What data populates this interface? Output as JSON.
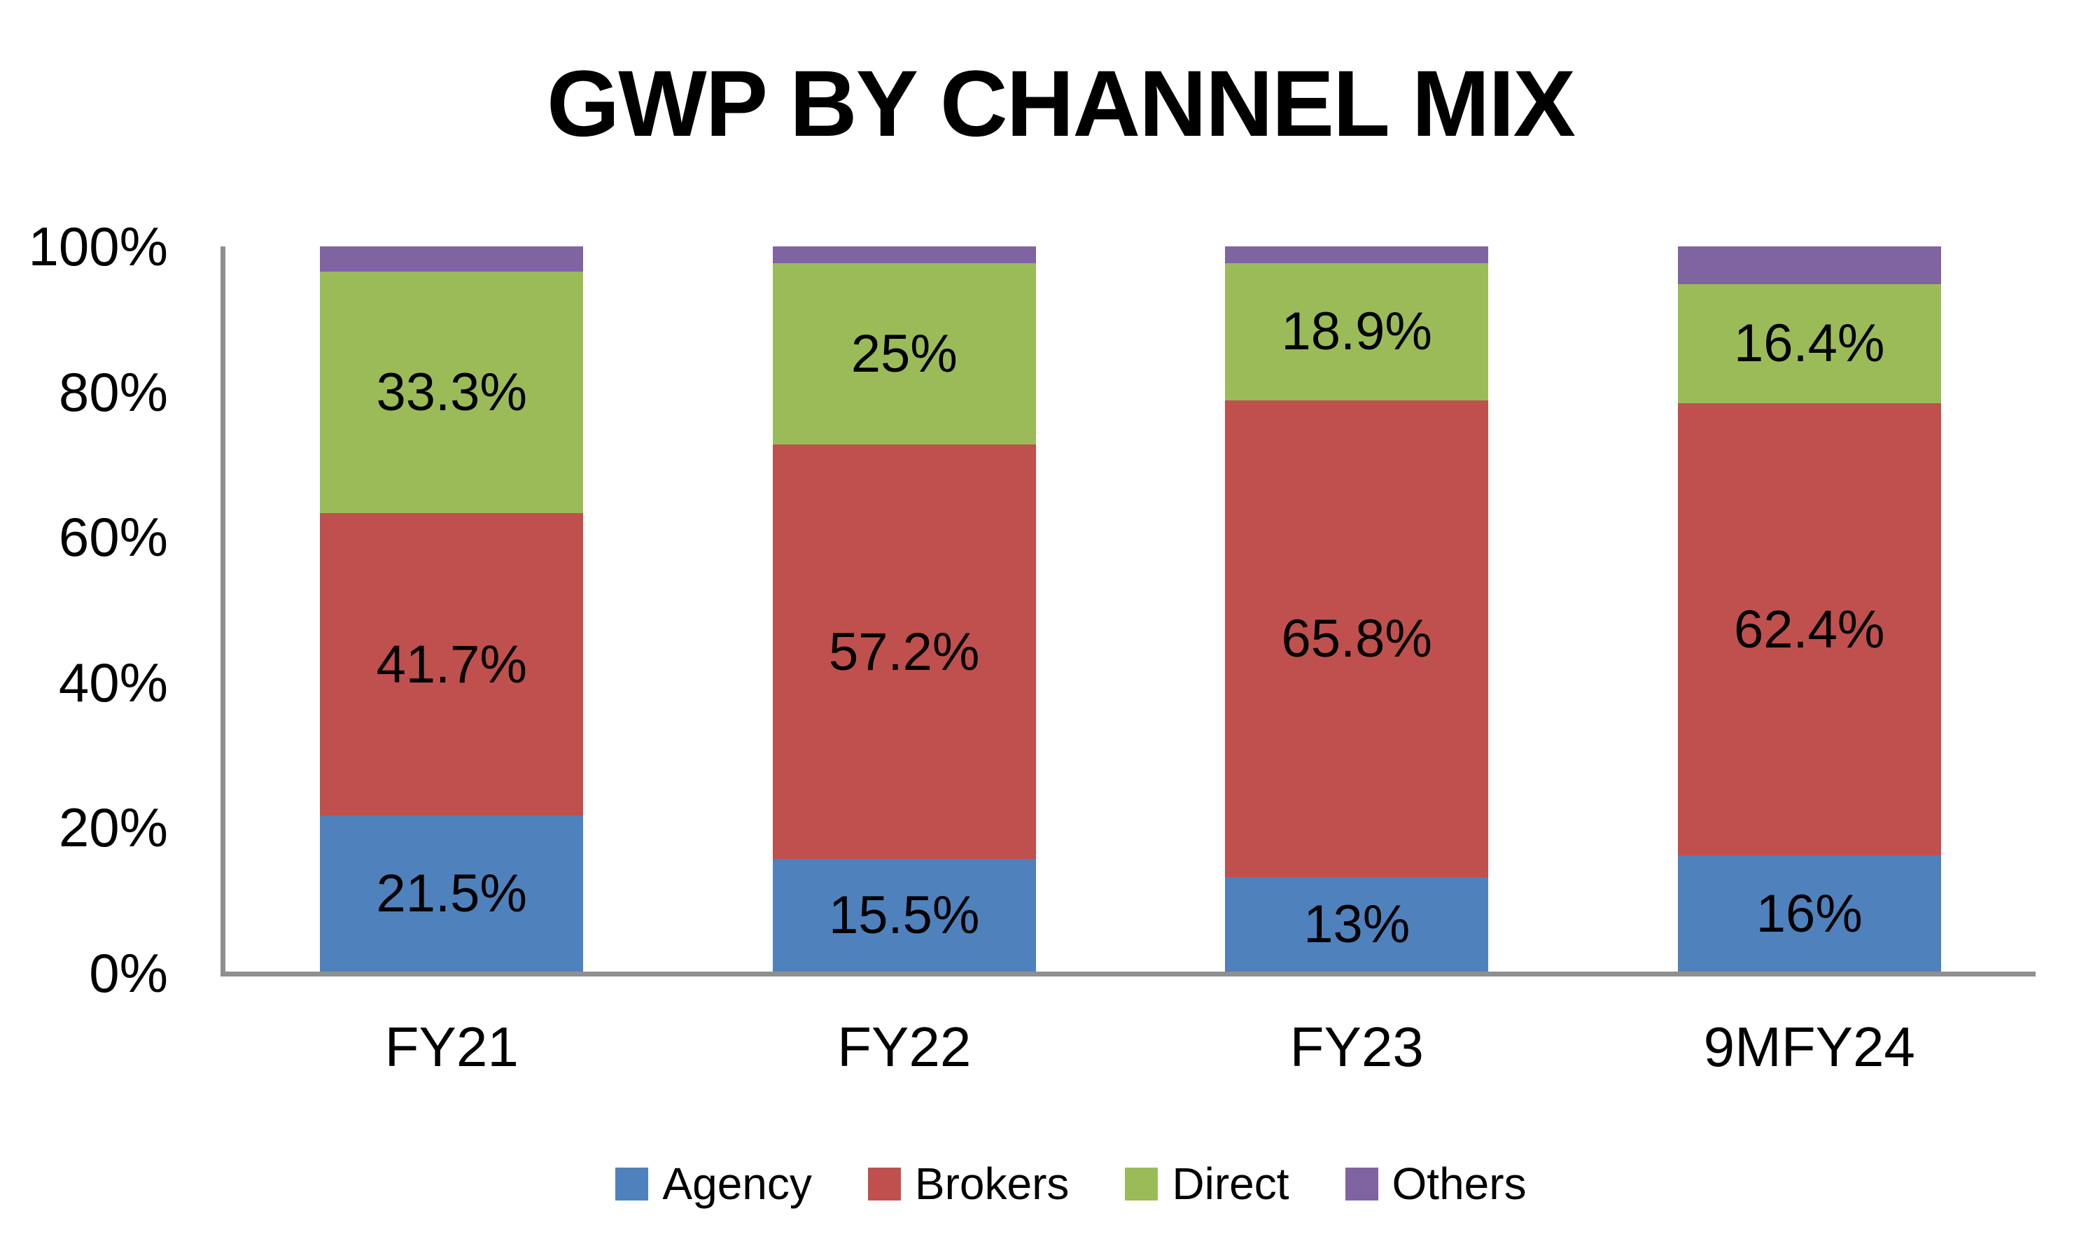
{
  "title": "GWP BY CHANNEL MIX",
  "colors": {
    "axis_line": "#8F8F8F",
    "text": "#000000",
    "background": "#FFFFFF",
    "agency": "#4F81BD",
    "brokers": "#C0504D",
    "direct": "#9BBB59",
    "others": "#8064A2"
  },
  "y_axis": {
    "ticks": [
      {
        "label": "100%",
        "value": 100
      },
      {
        "label": "80%",
        "value": 80
      },
      {
        "label": "60%",
        "value": 60
      },
      {
        "label": "40%",
        "value": 40
      },
      {
        "label": "20%",
        "value": 20
      },
      {
        "label": "0%",
        "value": 0
      }
    ]
  },
  "chart_data": {
    "type": "bar",
    "stacked": true,
    "title": "GWP BY CHANNEL MIX",
    "xlabel": "",
    "ylabel": "",
    "ylim": [
      0,
      100
    ],
    "grid": false,
    "legend_position": "bottom",
    "categories": [
      "FY21",
      "FY22",
      "FY23",
      "9MFY24"
    ],
    "series": [
      {
        "name": "Agency",
        "color": "#4F81BD",
        "values": [
          21.5,
          15.5,
          13,
          16
        ],
        "labels": [
          "21.5%",
          "15.5%",
          "13%",
          "16%"
        ]
      },
      {
        "name": "Brokers",
        "color": "#C0504D",
        "values": [
          41.7,
          57.2,
          65.8,
          62.4
        ],
        "labels": [
          "41.7%",
          "57.2%",
          "65.8%",
          "62.4%"
        ]
      },
      {
        "name": "Direct",
        "color": "#9BBB59",
        "values": [
          33.3,
          25,
          18.9,
          16.4
        ],
        "labels": [
          "33.3%",
          "25%",
          "18.9%",
          "16.4%"
        ]
      },
      {
        "name": "Others",
        "color": "#8064A2",
        "values": [
          3.5,
          2.3,
          2.3,
          5.2
        ],
        "labels": [
          "",
          "",
          "",
          ""
        ]
      }
    ]
  },
  "legend": {
    "items": [
      {
        "label": "Agency",
        "color": "#4F81BD"
      },
      {
        "label": "Brokers",
        "color": "#C0504D"
      },
      {
        "label": "Direct",
        "color": "#9BBB59"
      },
      {
        "label": "Others",
        "color": "#8064A2"
      }
    ]
  }
}
